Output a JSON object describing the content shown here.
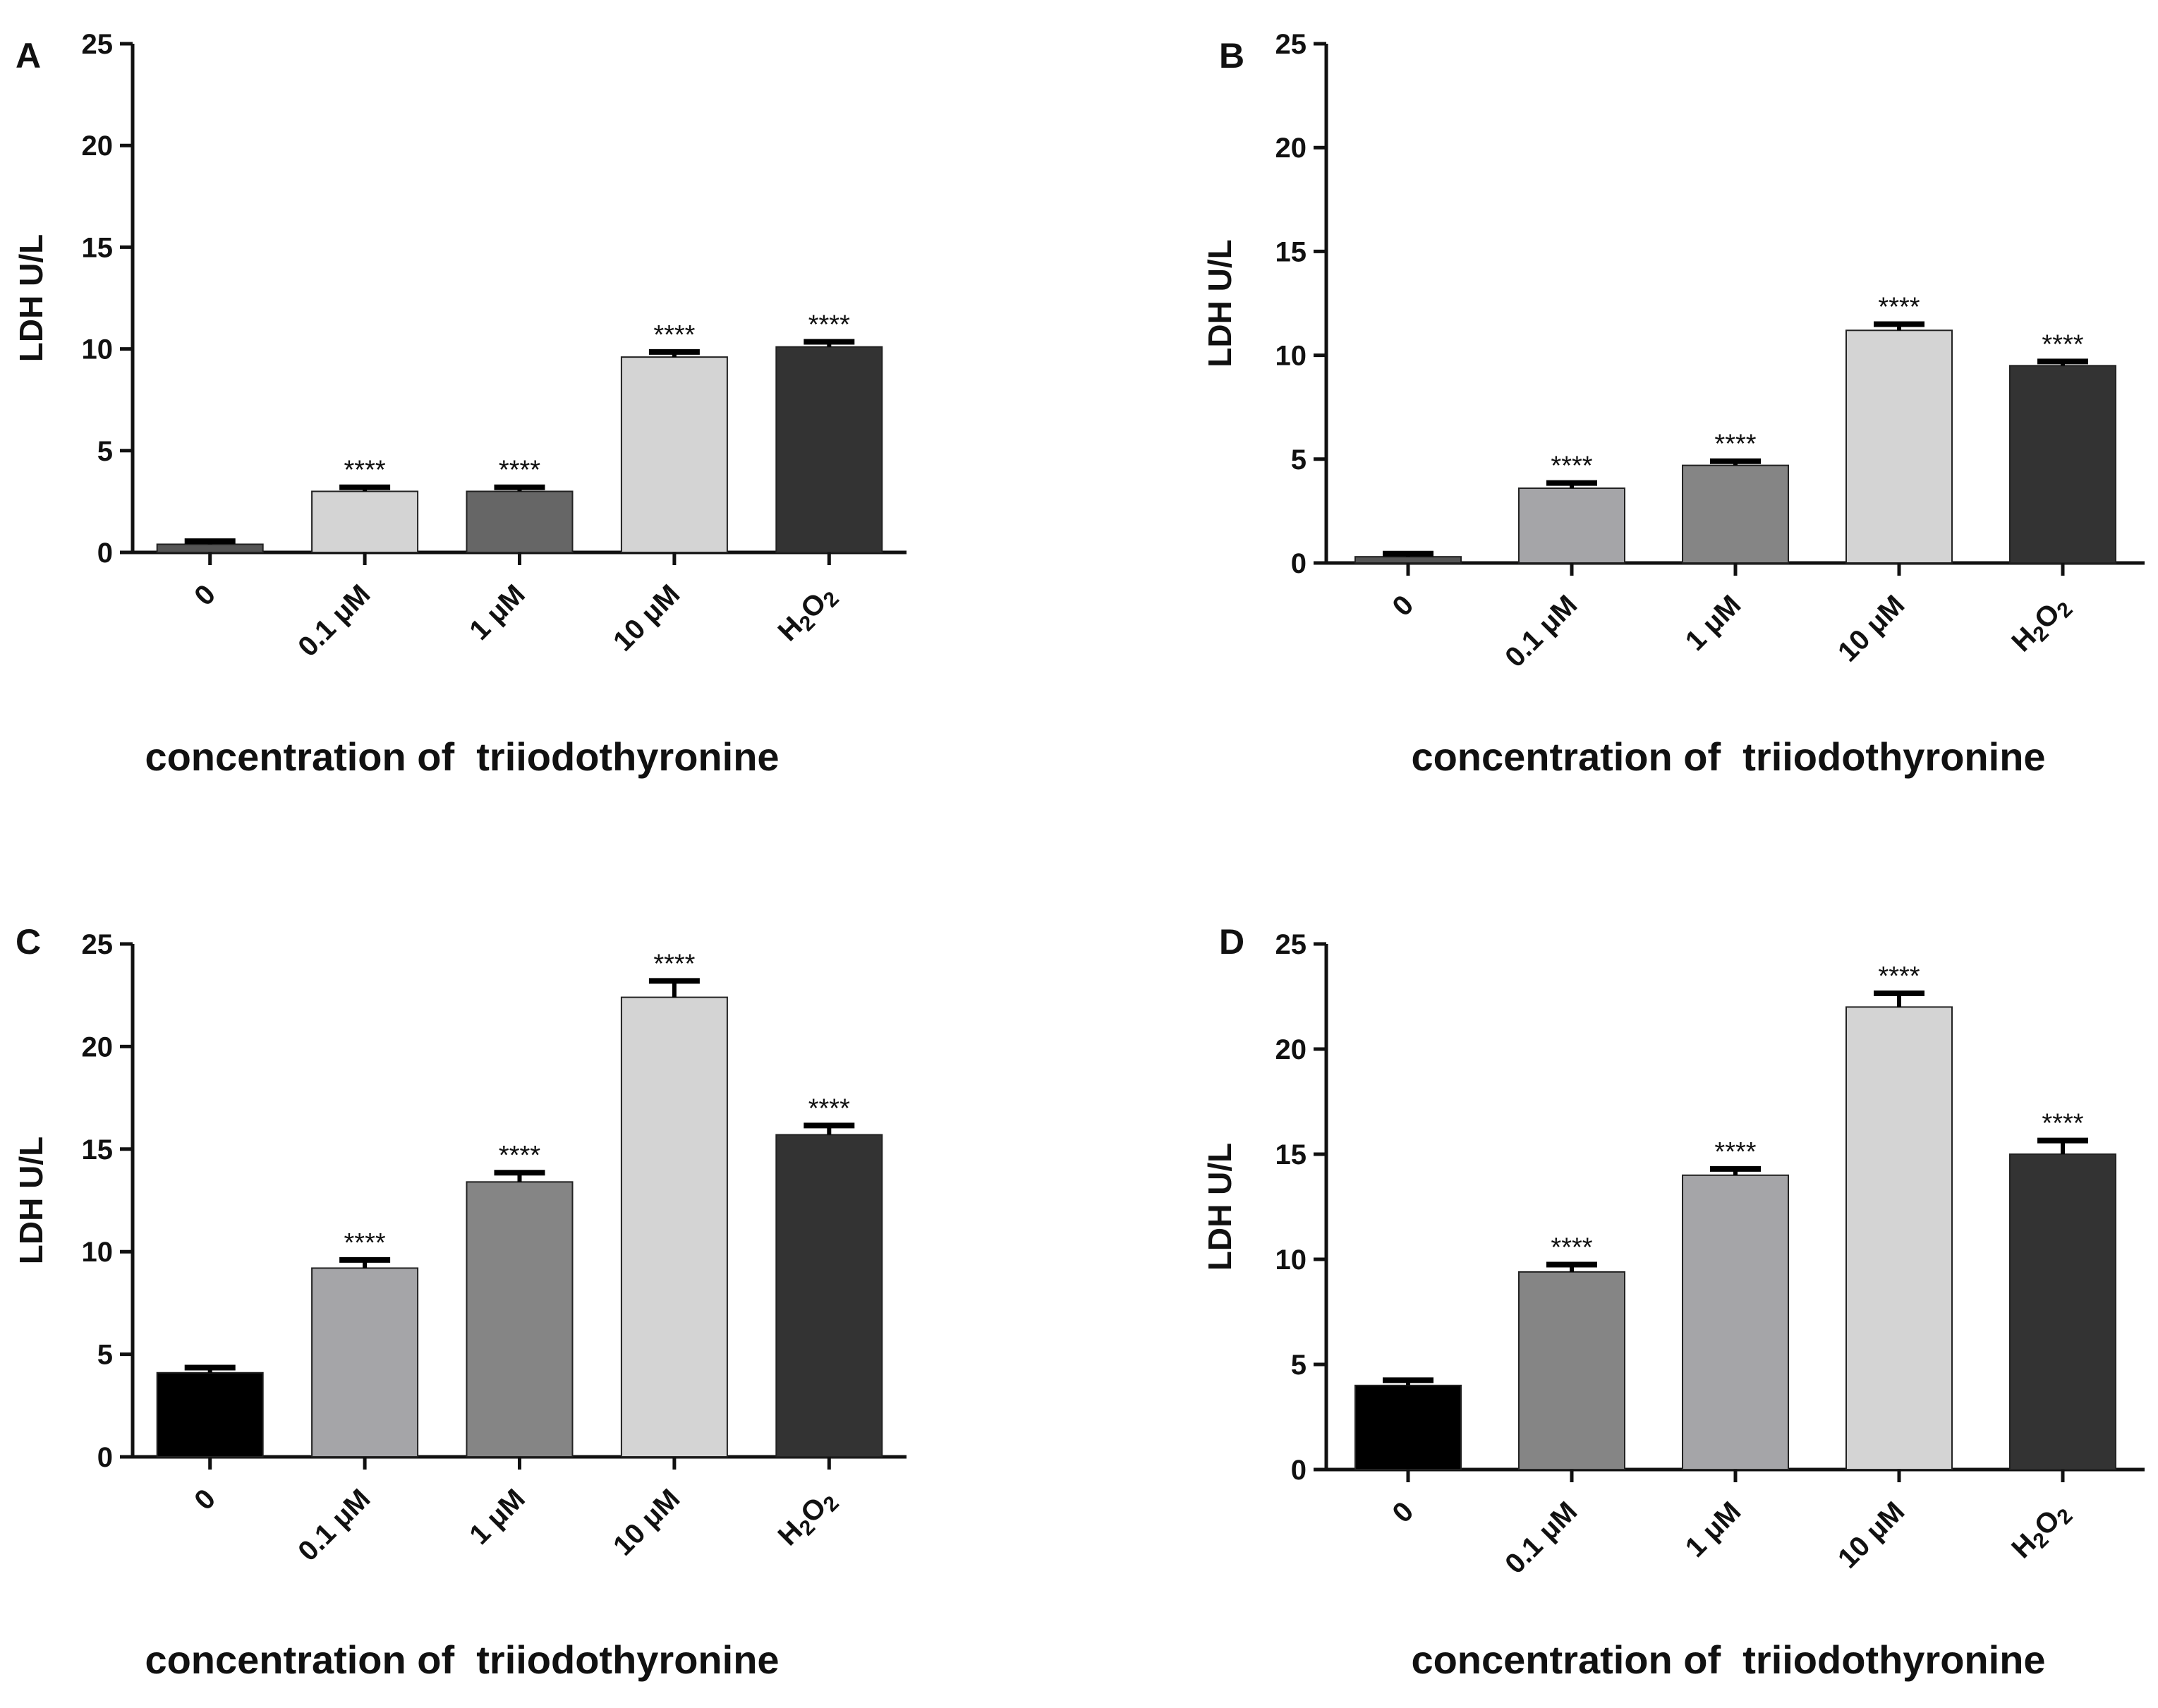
{
  "chart_data": [
    {
      "panel": "A",
      "type": "bar",
      "ylabel": "LDH U/L",
      "xlabel": "concentration of  triiodothyronine",
      "ylim": [
        0,
        25
      ],
      "yticks": [
        "0",
        "5",
        "10",
        "15",
        "20",
        "25"
      ],
      "categories": [
        "0",
        "0.1 μM",
        "1 μM",
        "10 μM",
        "H2O2"
      ],
      "values": [
        0.4,
        3.0,
        3.0,
        9.6,
        10.1
      ],
      "errors": [
        0.15,
        0.2,
        0.2,
        0.25,
        0.25
      ],
      "significance": [
        "",
        "****",
        "****",
        "****",
        "****"
      ],
      "colors": [
        "#555555",
        "#d4d4d4",
        "#666666",
        "#d4d4d4",
        "#333333"
      ]
    },
    {
      "panel": "B",
      "type": "bar",
      "ylabel": "LDH U/L",
      "xlabel": "concentration of  triiodothyronine",
      "ylim": [
        0,
        25
      ],
      "yticks": [
        "0",
        "5",
        "10",
        "15",
        "20",
        "25"
      ],
      "categories": [
        "0",
        "0.1 μM",
        "1 μM",
        "10 μM",
        "H2O2"
      ],
      "values": [
        0.3,
        3.6,
        4.7,
        11.2,
        9.5
      ],
      "errors": [
        0.15,
        0.25,
        0.2,
        0.3,
        0.2
      ],
      "significance": [
        "",
        "****",
        "****",
        "****",
        "****"
      ],
      "colors": [
        "#555555",
        "#a5a5a8",
        "#858585",
        "#d4d4d4",
        "#333333"
      ]
    },
    {
      "panel": "C",
      "type": "bar",
      "ylabel": "LDH U/L",
      "xlabel": "concentration of  triiodothyronine",
      "ylim": [
        0,
        25
      ],
      "yticks": [
        "0",
        "5",
        "10",
        "15",
        "20",
        "25"
      ],
      "categories": [
        "0",
        "0.1 μM",
        "1 μM",
        "10 μM",
        "H2O2"
      ],
      "values": [
        4.1,
        9.2,
        13.4,
        22.4,
        15.7
      ],
      "errors": [
        0.25,
        0.4,
        0.45,
        0.8,
        0.45
      ],
      "significance": [
        "",
        "****",
        "****",
        "****",
        "****"
      ],
      "colors": [
        "#000000",
        "#a5a5a8",
        "#858585",
        "#d4d4d4",
        "#333333"
      ]
    },
    {
      "panel": "D",
      "type": "bar",
      "ylabel": "LDH U/L",
      "xlabel": "concentration of  triiodothyronine",
      "ylim": [
        0,
        25
      ],
      "yticks": [
        "0",
        "5",
        "10",
        "15",
        "20",
        "25"
      ],
      "categories": [
        "0",
        "0.1 μM",
        "1 μM",
        "10 μM",
        "H2O2"
      ],
      "values": [
        4.0,
        9.4,
        14.0,
        22.0,
        15.0
      ],
      "errors": [
        0.25,
        0.35,
        0.3,
        0.65,
        0.65
      ],
      "significance": [
        "",
        "****",
        "****",
        "****",
        "****"
      ],
      "colors": [
        "#000000",
        "#858585",
        "#a5a5a8",
        "#d4d4d4",
        "#333333"
      ]
    }
  ]
}
